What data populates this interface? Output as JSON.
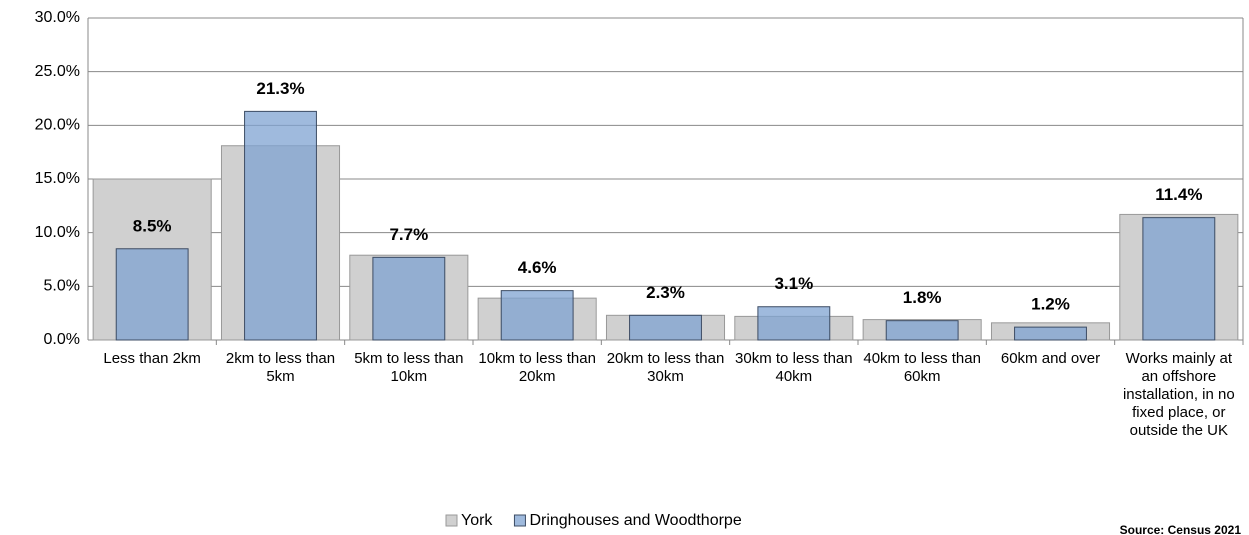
{
  "chart_data": {
    "type": "bar",
    "categories": [
      "Less than 2km",
      "2km to less than 5km",
      "5km to less than 10km",
      "10km to less than 20km",
      "20km to less than 30km",
      "30km to less than 40km",
      "40km to less than 60km",
      "60km and over",
      "Works mainly at an offshore installation, in no fixed place, or outside the UK"
    ],
    "series": [
      {
        "name": "York",
        "color": "#d0d0d0",
        "values": [
          15.0,
          18.1,
          7.9,
          3.9,
          2.3,
          2.2,
          1.9,
          1.6,
          11.7
        ]
      },
      {
        "name": "Dringhouses and Woodthorpe",
        "color": "#7fa3d1",
        "values": [
          8.5,
          21.3,
          7.7,
          4.6,
          2.3,
          3.1,
          1.8,
          1.2,
          11.4
        ],
        "value_labels": [
          "8.5%",
          "21.3%",
          "7.7%",
          "4.6%",
          "2.3%",
          "3.1%",
          "1.8%",
          "1.2%",
          "11.4%"
        ]
      }
    ],
    "ylim": [
      0,
      30
    ],
    "yticks": [
      {
        "value": 0,
        "label": "0.0%"
      },
      {
        "value": 5,
        "label": "5.0%"
      },
      {
        "value": 10,
        "label": "10.0%"
      },
      {
        "value": 15,
        "label": "15.0%"
      },
      {
        "value": 20,
        "label": "20.0%"
      },
      {
        "value": 25,
        "label": "25.0%"
      },
      {
        "value": 30,
        "label": "30.0%"
      }
    ],
    "grid": true,
    "legend": "bottom",
    "source": "Source: Census 2021"
  }
}
